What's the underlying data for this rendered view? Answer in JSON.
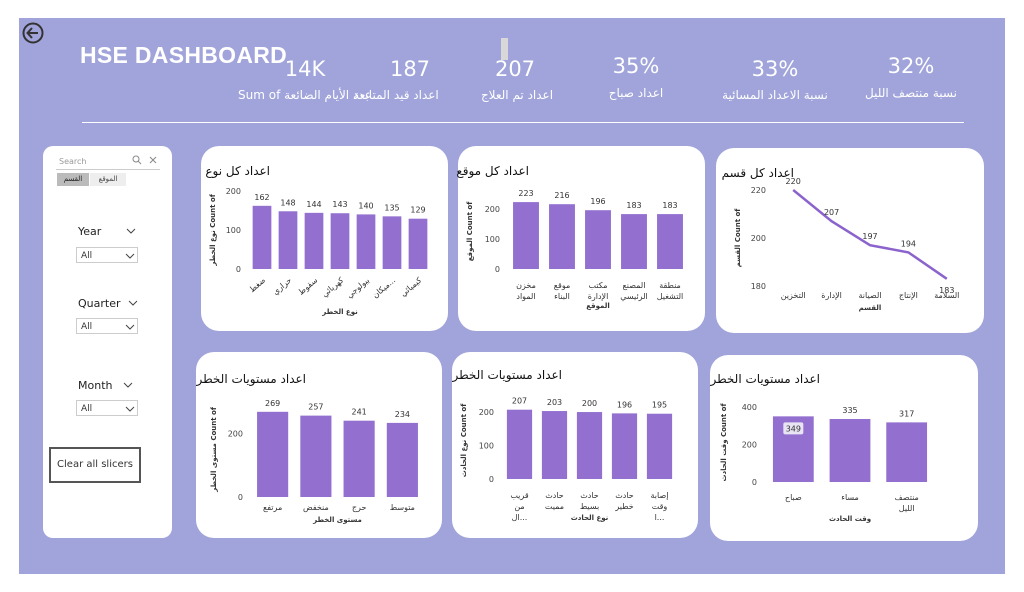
{
  "header": {
    "title": "HSE DASHBOARD",
    "kpis": [
      {
        "value": "14K",
        "label": "Sum of عدد الأيام الضائعة"
      },
      {
        "value": "187",
        "label": "اعداد قيد المتابعة"
      },
      {
        "value": "207",
        "label": "اعداد تم العلاج"
      },
      {
        "value": "35%",
        "label": "اعداد صباح"
      },
      {
        "value": "33%",
        "label": "نسبة الاعداد المسائية"
      },
      {
        "value": "32%",
        "label": "نسبة منتصف الليل"
      }
    ]
  },
  "slicers": {
    "search_placeholder": "Search",
    "tabs": [
      "القسم",
      "الموقع"
    ],
    "year_label": "Year",
    "year_value": "All",
    "quarter_label": "Quarter",
    "quarter_value": "All",
    "month_label": "Month",
    "month_value": "All",
    "clear_label": "Clear all slicers"
  },
  "colors": {
    "bar": "#9370d0",
    "background": "#a0a4da",
    "line": "#8b63cc"
  },
  "chart_data": [
    {
      "id": "c1",
      "type": "bar",
      "title": "اعداد كل نوع",
      "xlabel": "نوع الخطر",
      "ylabel": "نوع الخطر Count of",
      "categories": [
        "ضغط",
        "حراري",
        "سقوط",
        "كهربائي",
        "بيولوجي",
        "ميكان...",
        "كيميائي"
      ],
      "values": [
        162,
        148,
        144,
        143,
        140,
        135,
        129
      ],
      "ylim": [
        0,
        200
      ],
      "yticks": [
        0,
        100,
        200
      ]
    },
    {
      "id": "c2",
      "type": "bar",
      "title": "اعداد كل موقع",
      "xlabel": "الموقع",
      "ylabel": "الموقع Count of",
      "categories": [
        "مخزن المواد",
        "موقع البناء",
        "مكتب الإدارة",
        "المصنع الرئيسي",
        "منطقة التشغيل"
      ],
      "values": [
        223,
        216,
        196,
        183,
        183
      ],
      "ylim": [
        0,
        250
      ],
      "yticks": [
        0,
        100,
        200
      ]
    },
    {
      "id": "c3",
      "type": "line",
      "title": "اعداد كل قسم",
      "xlabel": "القسم",
      "ylabel": "القسم Count of",
      "categories": [
        "التخزين",
        "الإدارة",
        "الصيانة",
        "الإنتاج",
        "السلامة"
      ],
      "values": [
        220,
        207,
        197,
        194,
        183
      ],
      "ylim": [
        180,
        220
      ],
      "yticks": [
        180,
        200,
        220
      ]
    },
    {
      "id": "c4",
      "type": "bar",
      "title": "اعداد مستويات الخطر",
      "xlabel": "مستوى الخطر",
      "ylabel": "مستوى الخطر Count of",
      "categories": [
        "مرتفع",
        "منخفض",
        "حرج",
        "متوسط"
      ],
      "values": [
        269,
        257,
        241,
        234
      ],
      "ylim": [
        0,
        300
      ],
      "yticks": [
        0,
        200
      ]
    },
    {
      "id": "c5",
      "type": "bar",
      "title": "اعداد مستويات الخطر",
      "xlabel": "نوع الحادث",
      "ylabel": "نوع الحادث Count of",
      "categories": [
        "قريب من ال...",
        "حادث مميت",
        "حادث بسيط",
        "حادث خطير",
        "إصابة وقت ا..."
      ],
      "values": [
        207,
        203,
        200,
        196,
        195
      ],
      "ylim": [
        0,
        230
      ],
      "yticks": [
        0,
        100,
        200
      ]
    },
    {
      "id": "c6",
      "type": "bar",
      "title": "اعداد مستويات الخطر",
      "xlabel": "وقت الحادث",
      "ylabel": "وقت الحادث Count of",
      "categories": [
        "صباح",
        "مساء",
        "منتصف الليل"
      ],
      "values": [
        349,
        335,
        317
      ],
      "ylim": [
        0,
        420
      ],
      "yticks": [
        0,
        200,
        400
      ],
      "highlight": 0
    }
  ]
}
